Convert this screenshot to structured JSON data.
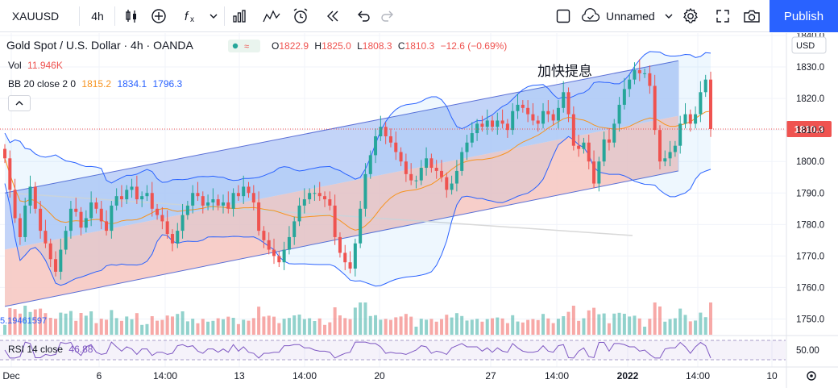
{
  "toolbar": {
    "symbol": "XAUUSD",
    "interval": "4h",
    "layout_name": "Unnamed",
    "publish_label": "Publish",
    "icons": [
      "search-icon",
      "candles-icon",
      "add-indicator-icon",
      "fx-icon",
      "chevron-down-icon",
      "bar-chart-icon",
      "alert-icon",
      "alarm-icon",
      "replay-icon",
      "undo-icon",
      "redo-icon",
      "select-icon",
      "cloud-icon",
      "settings-icon",
      "fullscreen-icon",
      "camera-icon"
    ]
  },
  "legend": {
    "title": "Gold Spot / U.S. Dollar · 4h · OANDA",
    "open_label": "O",
    "open": "1822.9",
    "high_label": "H",
    "high": "1825.0",
    "low_label": "L",
    "low": "1808.3",
    "close_label": "C",
    "close": "1810.3",
    "change": "−12.6 (−0.69%)",
    "vol_label": "Vol",
    "vol_value": "11.946K",
    "bb_label": "BB 20 close 2 0",
    "bb_basis": "1815.2",
    "bb_upper": "1834.1",
    "bb_lower": "1796.3",
    "rsi_label": "RSI 14 close",
    "rsi_value": "46.88",
    "volume_axis_label": "5.19461597"
  },
  "annotation_text": "加快提息",
  "price_tag": "1810.3",
  "currency": "USD",
  "colors": {
    "up": "#26a69a",
    "down": "#ef5350",
    "bb_basis": "#f7931e",
    "bb_band": "#2962ff",
    "channel_upper_fill": "#b9ccf7",
    "channel_lower_fill": "#f6c6c0",
    "rsi": "#7e57c2",
    "accent": "#2962ff"
  },
  "chart_data": {
    "type": "candlestick",
    "price_axis": {
      "min": 1745,
      "max": 1840,
      "ticks": [
        "1840.0",
        "1830.0",
        "1820.0",
        "1810.0",
        "1800.0",
        "1790.0",
        "1780.0",
        "1770.0",
        "1760.0",
        "1750.0"
      ]
    },
    "rsi_axis": {
      "ticks": [
        "50.00"
      ]
    },
    "time_axis_ticks": [
      "Dec",
      "6",
      "14:00",
      "13",
      "14:00",
      "20",
      "27",
      "14:00",
      "2022",
      "14:00",
      "10"
    ],
    "close_sequence": [
      1801,
      1791,
      1782,
      1776,
      1786,
      1792,
      1785,
      1778,
      1774,
      1769,
      1765,
      1772,
      1778,
      1785,
      1784,
      1779,
      1782,
      1787,
      1785,
      1781,
      1778,
      1786,
      1789,
      1788,
      1791,
      1792,
      1788,
      1789,
      1790,
      1785,
      1783,
      1781,
      1777,
      1774,
      1778,
      1783,
      1786,
      1790,
      1789,
      1786,
      1787,
      1788,
      1786,
      1787,
      1785,
      1790,
      1789,
      1792,
      1790,
      1787,
      1778,
      1775,
      1772,
      1770,
      1768,
      1772,
      1776,
      1781,
      1786,
      1788,
      1790,
      1790,
      1789,
      1788,
      1786,
      1776,
      1771,
      1768,
      1766,
      1774,
      1785,
      1796,
      1802,
      1808,
      1811,
      1808,
      1806,
      1803,
      1800,
      1796,
      1794,
      1794,
      1798,
      1801,
      1798,
      1797,
      1795,
      1791,
      1793,
      1797,
      1803,
      1806,
      1809,
      1812,
      1811,
      1813,
      1811,
      1813,
      1812,
      1810,
      1816,
      1818,
      1817,
      1815,
      1813,
      1812,
      1816,
      1815,
      1813,
      1817,
      1822,
      1815,
      1805,
      1804,
      1806,
      1800,
      1793,
      1800,
      1807,
      1806,
      1812,
      1818,
      1823,
      1826,
      1829,
      1828,
      1828,
      1824,
      1810,
      1800,
      1801,
      1803,
      1805,
      1812,
      1815,
      1812,
      1815,
      1822,
      1826,
      1810.3
    ],
    "bollinger": {
      "period": 20,
      "multiplier": 2,
      "basis": 1815.2,
      "upper": 1834.1,
      "lower": 1796.3
    },
    "channel": {
      "upper_start": 1790,
      "upper_end": 1832,
      "lower_start": 1754,
      "lower_end": 1797
    },
    "rsi_last": 46.88,
    "last_price": 1810.3
  }
}
